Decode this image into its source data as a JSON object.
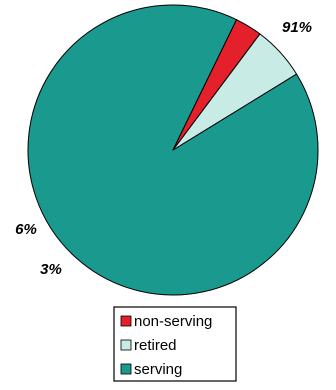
{
  "chart_data": {
    "type": "pie",
    "title": "",
    "slices": [
      {
        "label": "serving",
        "value": 91,
        "value_label": "91%",
        "color": "#1a9a8e"
      },
      {
        "label": "retired",
        "value": 6,
        "value_label": "6%",
        "color": "#c8ebe6"
      },
      {
        "label": "non-serving",
        "value": 3,
        "value_label": "3%",
        "color": "#e4202a"
      }
    ],
    "legend": {
      "placement": "bottom",
      "entries": [
        {
          "label": "non-serving",
          "color": "#e4202a"
        },
        {
          "label": "retired",
          "color": "#c8ebe6"
        },
        {
          "label": "serving",
          "color": "#1a9a8e"
        }
      ]
    }
  }
}
